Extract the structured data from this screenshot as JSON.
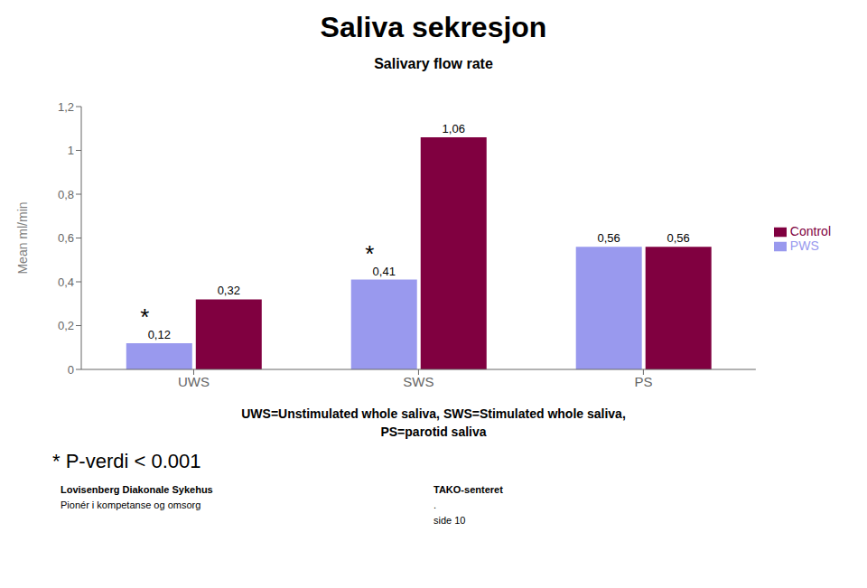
{
  "chart_data": {
    "type": "bar",
    "title": "Saliva sekresjon",
    "subtitle": "Salivary flow rate",
    "ylabel": "Mean ml/min",
    "categories": [
      "UWS",
      "SWS",
      "PS"
    ],
    "series": [
      {
        "name": "PWS",
        "color": "#9999ee",
        "values": [
          0.12,
          0.41,
          0.56
        ],
        "value_labels": [
          "0,12",
          "0,41",
          "0,56"
        ]
      },
      {
        "name": "Control",
        "color": "#800040",
        "values": [
          0.32,
          1.06,
          0.56
        ],
        "value_labels": [
          "0,32",
          "1,06",
          "0,56"
        ]
      }
    ],
    "ylim": [
      0,
      1.2
    ],
    "yticks": [
      0,
      {
        "value": 0.2,
        "label": "0,2"
      },
      {
        "value": 0.4,
        "label": "0,4"
      },
      {
        "value": 0.6,
        "label": "0,6"
      },
      {
        "value": 0.8,
        "label": "0,8"
      },
      1,
      {
        "value": 1.2,
        "label": "1,2"
      }
    ],
    "grid": false,
    "legend": "right",
    "data_labels": true,
    "annotations": [
      {
        "text": "*",
        "category": "UWS",
        "series": "PWS"
      },
      {
        "text": "*",
        "category": "SWS",
        "series": "PWS"
      }
    ],
    "footnotes": [
      "UWS=Unstimulated whole saliva, SWS=Stimulated whole saliva,",
      "PS=parotid saliva"
    ],
    "notes": [
      "* P-verdi < 0.001"
    ],
    "footer": [
      [
        "Lovisenberg Diakonale Sykehus",
        "Pionér i kompetanse og omsorg"
      ],
      [
        "TAKO-senteret",
        ".",
        "side 10"
      ]
    ]
  }
}
